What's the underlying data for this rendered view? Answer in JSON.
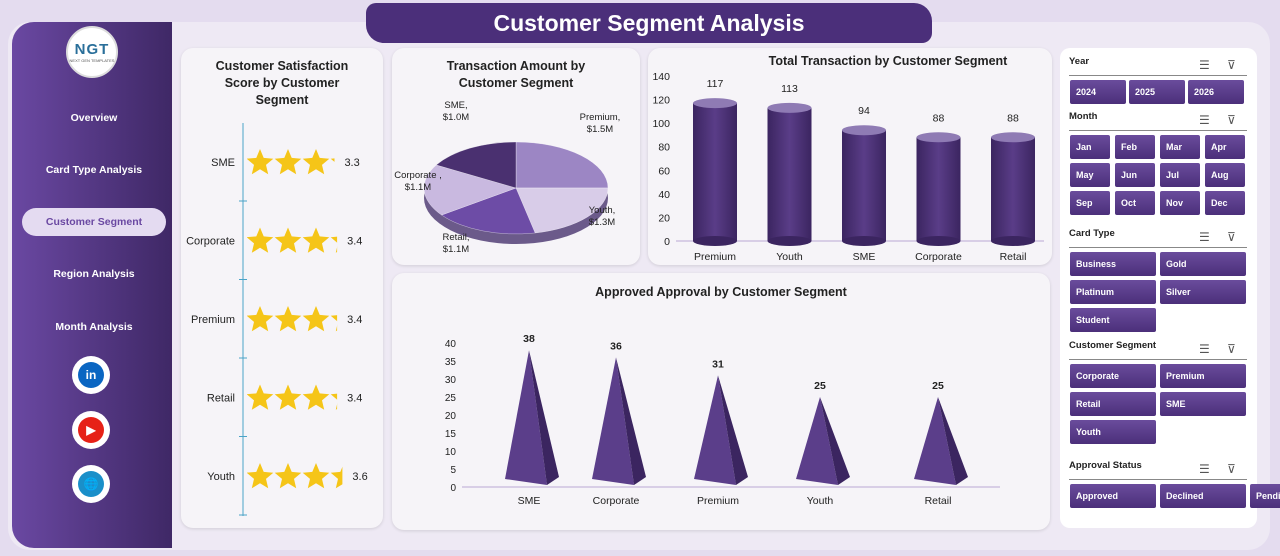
{
  "title": "Customer Segment Analysis",
  "logo": {
    "text": "NGT",
    "subtext": "NEXT GEN TEMPLATES"
  },
  "nav": [
    "Overview",
    "Card Type Analysis",
    "Customer Segment",
    "Region Analysis",
    "Month Analysis"
  ],
  "nav_active": "Customer Segment",
  "social": [
    {
      "name": "linkedin",
      "label": "in",
      "color": "#0a66c2"
    },
    {
      "name": "youtube",
      "label": "▶",
      "color": "#e62117"
    },
    {
      "name": "website",
      "label": "🌐",
      "color": "#1a8fc9"
    }
  ],
  "colors": {
    "primary": "#4b2f7a",
    "accent": "#6a48a2",
    "star": "#f5c518"
  },
  "chart_data": [
    {
      "type": "bar",
      "title": "Customer Satisfaction Score by Customer Segment",
      "categories": [
        "SME",
        "Corporate",
        "Premium",
        "Retail",
        "Youth"
      ],
      "values": [
        3.3,
        3.4,
        3.4,
        3.4,
        3.6
      ],
      "marker": "stars"
    },
    {
      "type": "pie",
      "title": "Transaction Amount by Customer Segment",
      "categories": [
        "Premium",
        "Youth",
        "Retail",
        "Corporate",
        "SME"
      ],
      "values": [
        1.5,
        1.3,
        1.1,
        1.1,
        1.0
      ],
      "labels": [
        "Premium, $1.5M",
        "Youth, $1.3M",
        "Retail, $1.1M",
        "Corporate , $1.1M",
        "SME, $1.0M"
      ]
    },
    {
      "type": "bar",
      "title": "Total Transaction by Customer Segment",
      "categories": [
        "Premium",
        "Youth",
        "SME",
        "Corporate",
        "Retail"
      ],
      "values": [
        117,
        113,
        94,
        88,
        88
      ],
      "ylim": [
        0,
        140
      ],
      "yticks": [
        "0",
        "20",
        "40",
        "60",
        "80",
        "100",
        "120",
        "140"
      ]
    },
    {
      "type": "bar",
      "title": "Approved Approval by Customer Segment",
      "categories": [
        "SME",
        "Corporate",
        "Premium",
        "Youth",
        "Retail"
      ],
      "values": [
        38,
        36,
        31,
        25,
        25
      ],
      "ylim": [
        0,
        40
      ],
      "yticks": [
        "0",
        "5",
        "10",
        "15",
        "20",
        "25",
        "30",
        "35",
        "40"
      ]
    }
  ],
  "slicers": [
    {
      "label": "Year",
      "items": [
        "2024",
        "2025",
        "2026"
      ]
    },
    {
      "label": "Month",
      "items": [
        "Jan",
        "Feb",
        "Mar",
        "Apr",
        "May",
        "Jun",
        "Jul",
        "Aug",
        "Sep",
        "Oct",
        "Nov",
        "Dec"
      ]
    },
    {
      "label": "Card Type",
      "items": [
        "Business",
        "Gold",
        "Platinum",
        "Silver",
        "Student"
      ]
    },
    {
      "label": "Customer Segment",
      "items": [
        "Corporate",
        "Premium",
        "Retail",
        "SME",
        "Youth"
      ]
    },
    {
      "label": "Approval Status",
      "items": [
        "Approved",
        "Declined",
        "Pending"
      ]
    }
  ]
}
